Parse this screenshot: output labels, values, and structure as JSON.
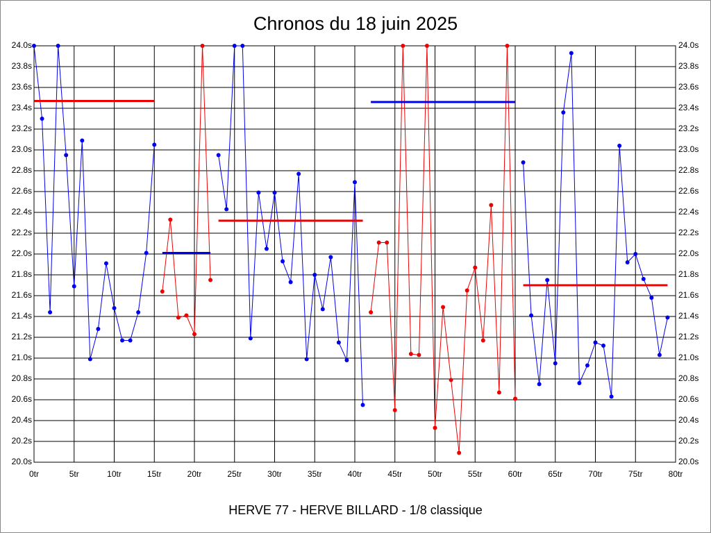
{
  "chart_data": {
    "type": "line",
    "title": "Chronos du 18 juin 2025",
    "xlabel": "HERVE 77 - HERVE BILLARD - 1/8 classique",
    "xlim": [
      0,
      80
    ],
    "ylim": [
      20.0,
      24.0
    ],
    "grid": true,
    "right_axis": true,
    "xticks": [
      {
        "value": 0,
        "label": "0tr"
      },
      {
        "value": 5,
        "label": "5tr"
      },
      {
        "value": 10,
        "label": "10tr"
      },
      {
        "value": 15,
        "label": "15tr"
      },
      {
        "value": 20,
        "label": "20tr"
      },
      {
        "value": 25,
        "label": "25tr"
      },
      {
        "value": 30,
        "label": "30tr"
      },
      {
        "value": 35,
        "label": "35tr"
      },
      {
        "value": 40,
        "label": "40tr"
      },
      {
        "value": 45,
        "label": "45tr"
      },
      {
        "value": 50,
        "label": "50tr"
      },
      {
        "value": 55,
        "label": "55tr"
      },
      {
        "value": 60,
        "label": "60tr"
      },
      {
        "value": 65,
        "label": "65tr"
      },
      {
        "value": 70,
        "label": "70tr"
      },
      {
        "value": 75,
        "label": "75tr"
      },
      {
        "value": 80,
        "label": "80tr"
      }
    ],
    "yticks": [
      {
        "value": 20.0,
        "label": "20.0s"
      },
      {
        "value": 20.2,
        "label": "20.2s"
      },
      {
        "value": 20.4,
        "label": "20.4s"
      },
      {
        "value": 20.6,
        "label": "20.6s"
      },
      {
        "value": 20.8,
        "label": "20.8s"
      },
      {
        "value": 21.0,
        "label": "21.0s"
      },
      {
        "value": 21.2,
        "label": "21.2s"
      },
      {
        "value": 21.4,
        "label": "21.4s"
      },
      {
        "value": 21.6,
        "label": "21.6s"
      },
      {
        "value": 21.8,
        "label": "21.8s"
      },
      {
        "value": 22.0,
        "label": "22.0s"
      },
      {
        "value": 22.2,
        "label": "22.2s"
      },
      {
        "value": 22.4,
        "label": "22.4s"
      },
      {
        "value": 22.6,
        "label": "22.6s"
      },
      {
        "value": 22.8,
        "label": "22.8s"
      },
      {
        "value": 23.0,
        "label": "23.0s"
      },
      {
        "value": 23.2,
        "label": "23.2s"
      },
      {
        "value": 23.4,
        "label": "23.4s"
      },
      {
        "value": 23.6,
        "label": "23.6s"
      },
      {
        "value": 23.8,
        "label": "23.8s"
      },
      {
        "value": 24.0,
        "label": "24.0s"
      }
    ],
    "series": [
      {
        "color": "#0000ee",
        "x": [
          0,
          1,
          2,
          3,
          4,
          5,
          6,
          7,
          8,
          9,
          10,
          11,
          12,
          13,
          14,
          15
        ],
        "values": [
          24.0,
          23.3,
          21.44,
          24.0,
          22.95,
          21.69,
          23.09,
          20.99,
          21.28,
          21.91,
          21.48,
          21.17,
          21.17,
          21.44,
          22.01,
          23.05
        ]
      },
      {
        "color": "#ee0000",
        "x": [
          16,
          17,
          18,
          19,
          20,
          21,
          22
        ],
        "values": [
          21.64,
          22.33,
          21.39,
          21.41,
          21.23,
          24.0,
          21.75
        ]
      },
      {
        "color": "#0000ee",
        "x": [
          23,
          24,
          25,
          26,
          27,
          28,
          29,
          30,
          31,
          32,
          33,
          34,
          35,
          36,
          37,
          38,
          39,
          40,
          41
        ],
        "values": [
          22.95,
          22.43,
          24.0,
          24.0,
          21.19,
          22.59,
          22.05,
          22.59,
          21.93,
          21.73,
          22.77,
          20.99,
          21.8,
          21.47,
          21.97,
          21.15,
          20.98,
          22.69,
          20.55
        ]
      },
      {
        "color": "#ee0000",
        "x": [
          42,
          43,
          44,
          45,
          46,
          47,
          48,
          49,
          50,
          51,
          52,
          53,
          54,
          55,
          56,
          57,
          58,
          59,
          60
        ],
        "values": [
          21.44,
          22.11,
          22.11,
          20.5,
          24.0,
          21.04,
          21.03,
          24.0,
          20.33,
          21.49,
          20.79,
          20.09,
          21.65,
          21.87,
          21.17,
          22.47,
          20.67,
          24.0,
          20.61
        ]
      },
      {
        "color": "#0000ee",
        "x": [
          61,
          62,
          63,
          64,
          65,
          66,
          67,
          68,
          69,
          70,
          71,
          72,
          73,
          74,
          75,
          76,
          77,
          78,
          79
        ],
        "values": [
          22.88,
          21.41,
          20.75,
          21.75,
          20.95,
          23.36,
          23.93,
          20.76,
          20.93,
          21.15,
          21.12,
          20.63,
          23.04,
          21.92,
          22.0,
          21.76,
          21.58,
          21.03,
          21.39
        ]
      }
    ],
    "averages": [
      {
        "color": "#ee0000",
        "x": [
          0,
          15
        ],
        "value": 23.47
      },
      {
        "color": "#0000ee",
        "x": [
          16,
          22
        ],
        "value": 22.01
      },
      {
        "color": "#ee0000",
        "x": [
          23,
          41
        ],
        "value": 22.32
      },
      {
        "color": "#0000ee",
        "x": [
          42,
          60
        ],
        "value": 23.46
      },
      {
        "color": "#ee0000",
        "x": [
          61,
          79
        ],
        "value": 21.7
      }
    ]
  }
}
